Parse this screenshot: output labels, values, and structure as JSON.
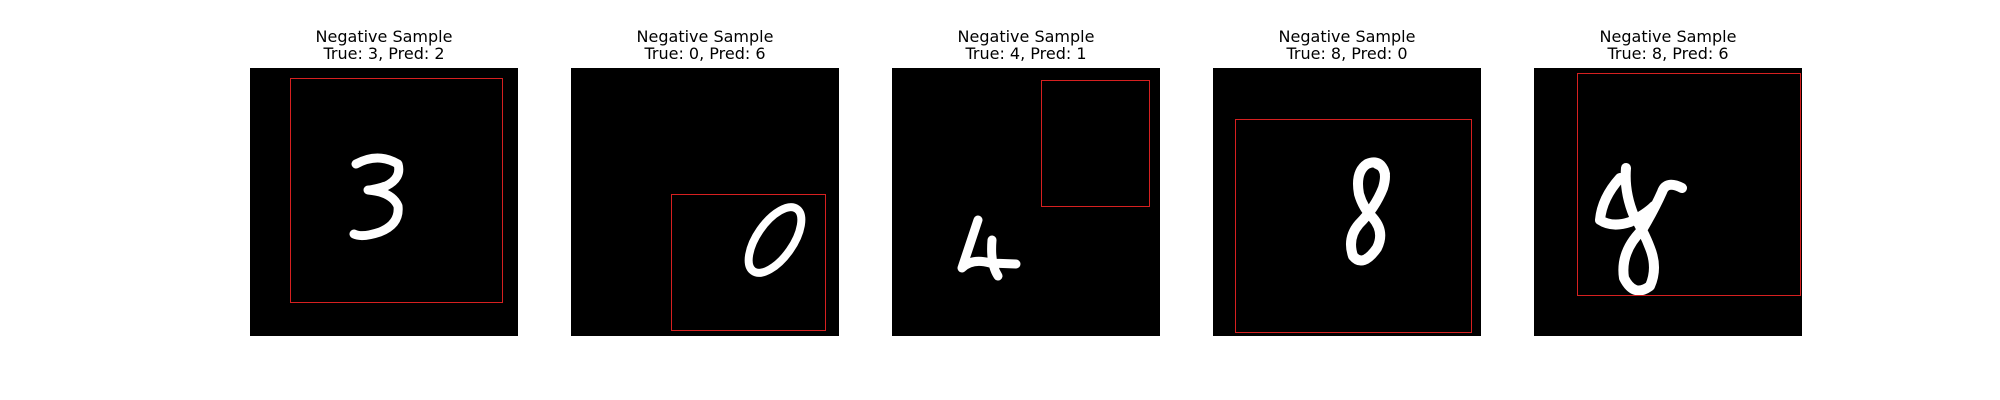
{
  "panels": [
    {
      "title": "Negative Sample",
      "subtitle": "True: 3, Pred: 2",
      "digit": "3"
    },
    {
      "title": "Negative Sample",
      "subtitle": "True: 0, Pred: 6",
      "digit": "0"
    },
    {
      "title": "Negative Sample",
      "subtitle": "True: 4, Pred: 1",
      "digit": "4"
    },
    {
      "title": "Negative Sample",
      "subtitle": "True: 8, Pred: 0",
      "digit": "8"
    },
    {
      "title": "Negative Sample",
      "subtitle": "True: 8, Pred: 6",
      "digit": "8"
    }
  ],
  "colors": {
    "bbox": "#d62020",
    "background": "#000000",
    "stroke": "#ffffff"
  }
}
